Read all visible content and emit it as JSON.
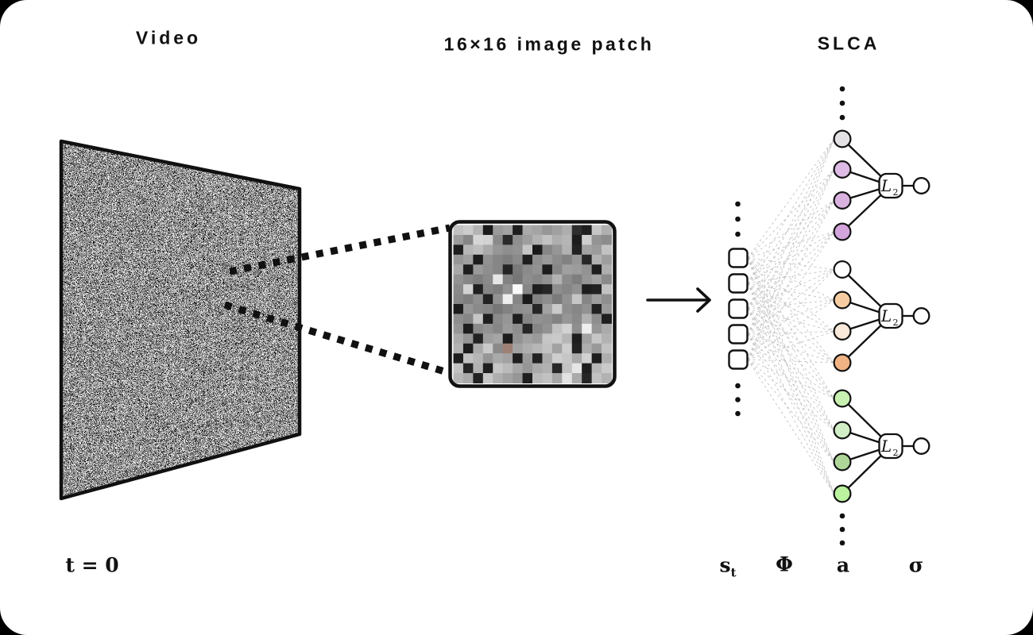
{
  "titles": {
    "video": "Video",
    "patch": "16×16 image patch",
    "network": "SLCA"
  },
  "footer": {
    "time": "t = 0",
    "state_main": "s",
    "state_sub": "t",
    "dictionary": "Φ",
    "activations": "a",
    "output": "σ"
  },
  "network": {
    "l2_main": "L",
    "l2_sub": "2",
    "input_square_count": 5,
    "groups": [
      {
        "name": "group-1",
        "node_colors": [
          "#e4e1e4",
          "#ddbbe4",
          "#d9b2e0",
          "#d3a5dc"
        ]
      },
      {
        "name": "group-2",
        "node_colors": [
          "#ffffff",
          "#f6cda2",
          "#f8e9da",
          "#f0b383"
        ]
      },
      {
        "name": "group-3",
        "node_colors": [
          "#c8f0b0",
          "#d2eec6",
          "#aed698",
          "#baf29e"
        ]
      }
    ],
    "mesh_color": "#c3c3c3",
    "edge_color": "#111111",
    "node_stroke": "#111111"
  },
  "patch_grid": {
    "rows": [
      "c2ccb41a9aa21eaaa496a0ae2e1ec6b0",
      "9c86d6d28a2a8e9eb2c2aeb61cce948c",
      "1eb6beaa968e92c61a8696b222a29cc2",
      "96a01c92867e8a1e8e9a8c829626b29e",
      "a81e9a8e86247a8a921c86a09c921eae",
      "92867e8ae682768e8692b28c7e96a28a",
      "8ad220867e92fa861e268e86921e22c2",
      "867e8e2292ee861a828e7a92c6869e8e",
      "1c968a8676828e9226a2ca8e8692229a",
      "8e86c61e8a961e86928e82968ab28e1e",
      "961e8a92869a8e268692c2d28eee96aa",
      "aa96229ea61c92a29ac6cab61ea2c6b2",
      "b21caaca8a96a2aeb6c2a2ce22ae9ac2",
      "1ec2b696aaa21e9a22aacec6aad21eae",
      "c226b21ec6baa696aab226c2e61eb6ca",
      "b6aa22c6aea2961ebac2a6e2aa26c2b2"
    ],
    "tinted_cell": {
      "row": 12,
      "col": 5,
      "color": "#9e8074"
    }
  },
  "colors": {
    "page_bg": "#000000",
    "card_bg": "#ffffff",
    "ink": "#111111"
  }
}
